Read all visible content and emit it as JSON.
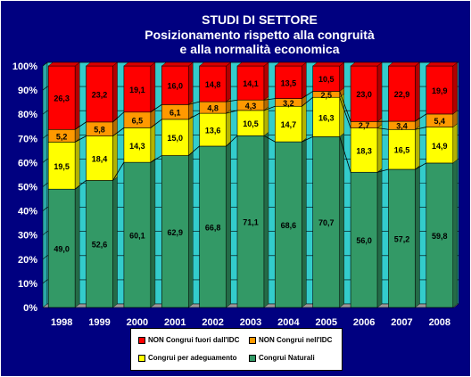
{
  "chart_data": {
    "type": "bar",
    "stacked": true,
    "title": "STUDI DI SETTORE",
    "subtitle_lines": [
      "Posizionamento rispetto alla congruità",
      "e alla normalità economica"
    ],
    "categories": [
      "1998",
      "1999",
      "2000",
      "2001",
      "2002",
      "2003",
      "2004",
      "2005",
      "2006",
      "2007",
      "2008"
    ],
    "y_ticks": [
      "0%",
      "10%",
      "20%",
      "30%",
      "40%",
      "50%",
      "60%",
      "70%",
      "80%",
      "90%",
      "100%"
    ],
    "ylim": [
      0,
      100
    ],
    "grid": true,
    "legend_position": "bottom",
    "series": [
      {
        "name": "Congrui Naturali",
        "color": "#339966",
        "values": [
          49.0,
          52.6,
          60.1,
          62.9,
          66.8,
          71.1,
          68.6,
          70.7,
          56.0,
          57.2,
          59.8
        ],
        "labels": [
          "49,0",
          "52,6",
          "60,1",
          "62,9",
          "66,8",
          "71,1",
          "68,6",
          "70,7",
          "56,0",
          "57,2",
          "59,8"
        ]
      },
      {
        "name": "Congrui per adeguamento",
        "color": "#ffff00",
        "values": [
          19.5,
          18.4,
          14.3,
          15.0,
          13.6,
          10.5,
          14.7,
          16.3,
          18.3,
          16.5,
          14.9
        ],
        "labels": [
          "19,5",
          "18,4",
          "14,3",
          "15,0",
          "13,6",
          "10,5",
          "14,7",
          "16,3",
          "18,3",
          "16,5",
          "14,9"
        ]
      },
      {
        "name": "NON Congrui nell'IDC",
        "color": "#ff9900",
        "values": [
          5.2,
          5.8,
          6.5,
          6.1,
          4.8,
          4.3,
          3.2,
          2.5,
          2.7,
          3.4,
          5.4
        ],
        "labels": [
          "5,2",
          "5,8",
          "6,5",
          "6,1",
          "4,8",
          "4,3",
          "3,2",
          "2,5",
          "2,7",
          "3,4",
          "5,4"
        ]
      },
      {
        "name": "NON Congrui fuori dall'IDC",
        "color": "#ff0000",
        "values": [
          26.3,
          23.2,
          19.1,
          16.0,
          14.8,
          14.1,
          13.5,
          10.5,
          23.0,
          22.9,
          19.9
        ],
        "labels": [
          "26,3",
          "23,2",
          "19,1",
          "16,0",
          "14,8",
          "14,1",
          "13,5",
          "10,5",
          "23,0",
          "22,9",
          "19,9"
        ]
      }
    ],
    "colors": {
      "plot_background": "#33cccc",
      "background": "#000080",
      "text": "#ffffff",
      "connector": "#000000"
    }
  },
  "legend": {
    "items": [
      {
        "label": "NON Congrui fuori dall'IDC",
        "color": "#ff0000"
      },
      {
        "label": "NON Congrui nell'IDC",
        "color": "#ff9900"
      },
      {
        "label": "Congrui per adeguamento",
        "color": "#ffff00"
      },
      {
        "label": "Congrui Naturali",
        "color": "#339966"
      }
    ]
  }
}
